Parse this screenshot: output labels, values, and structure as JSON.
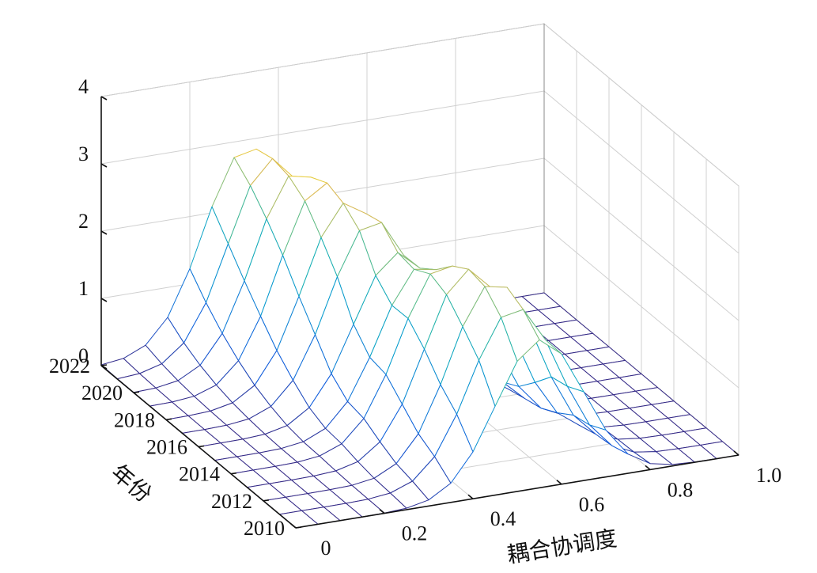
{
  "chart_data": {
    "type": "surface",
    "title": "",
    "xlabel": "耦合协调度",
    "ylabel": "年份",
    "zlabel": "",
    "xlim": [
      0,
      1.0
    ],
    "ylim": [
      2010,
      2022
    ],
    "zlim": [
      0,
      4
    ],
    "grid": true,
    "x_ticks": [
      "0",
      "0.2",
      "0.4",
      "0.6",
      "0.8",
      "1.0"
    ],
    "y_ticks": [
      "2010",
      "2012",
      "2014",
      "2016",
      "2018",
      "2020",
      "2022"
    ],
    "z_ticks": [
      "0",
      "1",
      "2",
      "3",
      "4"
    ],
    "colormap": "parula",
    "x": [
      0.0,
      0.05,
      0.1,
      0.15,
      0.2,
      0.25,
      0.3,
      0.35,
      0.4,
      0.45,
      0.5,
      0.55,
      0.6,
      0.65,
      0.7,
      0.75,
      0.8,
      0.85,
      0.9,
      0.95,
      1.0
    ],
    "years": [
      2010,
      2011,
      2012,
      2013,
      2014,
      2015,
      2016,
      2017,
      2018,
      2019,
      2020,
      2021,
      2022
    ],
    "series": [
      {
        "year": 2010,
        "peak_x": 0.55,
        "peak_height": 2.2
      },
      {
        "year": 2011,
        "peak_x": 0.53,
        "peak_height": 2.5
      },
      {
        "year": 2012,
        "peak_x": 0.52,
        "peak_height": 2.7
      },
      {
        "year": 2013,
        "peak_x": 0.5,
        "peak_height": 2.7
      },
      {
        "year": 2014,
        "peak_x": 0.48,
        "peak_height": 2.6
      },
      {
        "year": 2015,
        "peak_x": 0.47,
        "peak_height": 2.4
      },
      {
        "year": 2016,
        "peak_x": 0.45,
        "peak_height": 2.4
      },
      {
        "year": 2017,
        "peak_x": 0.43,
        "peak_height": 2.7
      },
      {
        "year": 2018,
        "peak_x": 0.41,
        "peak_height": 2.8
      },
      {
        "year": 2019,
        "peak_x": 0.39,
        "peak_height": 2.9
      },
      {
        "year": 2020,
        "peak_x": 0.37,
        "peak_height": 2.9
      },
      {
        "year": 2021,
        "peak_x": 0.35,
        "peak_height": 2.9
      },
      {
        "year": 2022,
        "peak_x": 0.33,
        "peak_height": 2.9
      }
    ],
    "peak_width": 0.14
  }
}
